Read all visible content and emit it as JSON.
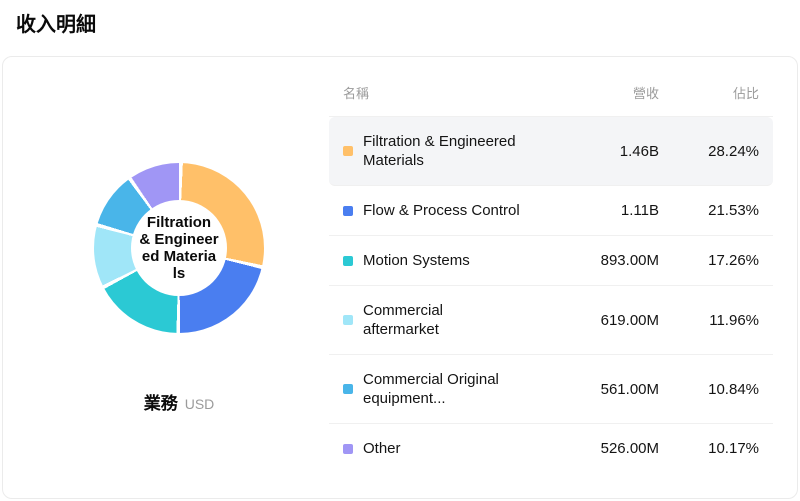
{
  "page": {
    "title": "收入明細"
  },
  "chart": {
    "center_label": "Filtration\n& Engineer\ned Materia\nls",
    "footer_label": "業務",
    "footer_unit": "USD"
  },
  "table": {
    "headers": {
      "name": "名稱",
      "revenue": "營收",
      "share": "佔比"
    },
    "rows": [
      {
        "name": "Filtration & Engineered\nMaterials",
        "revenue": "1.46B",
        "share": "28.24%",
        "color": "#FFC069",
        "highlighted": true
      },
      {
        "name": "Flow & Process Control",
        "revenue": "1.11B",
        "share": "21.53%",
        "color": "#4A7EF0",
        "highlighted": false
      },
      {
        "name": "Motion Systems",
        "revenue": "893.00M",
        "share": "17.26%",
        "color": "#2BC9D4",
        "highlighted": false
      },
      {
        "name": "Commercial\naftermarket",
        "revenue": "619.00M",
        "share": "11.96%",
        "color": "#A0E6F8",
        "highlighted": false
      },
      {
        "name": "Commercial Original\nequipment...",
        "revenue": "561.00M",
        "share": "10.84%",
        "color": "#49B5E9",
        "highlighted": false
      },
      {
        "name": "Other",
        "revenue": "526.00M",
        "share": "10.17%",
        "color": "#A096F5",
        "highlighted": false
      }
    ]
  },
  "chart_data": {
    "type": "pie",
    "donut": true,
    "title": "收入明細",
    "categories": [
      "Filtration & Engineered Materials",
      "Flow & Process Control",
      "Motion Systems",
      "Commercial aftermarket",
      "Commercial Original equipment...",
      "Other"
    ],
    "values": [
      28.24,
      21.53,
      17.26,
      11.96,
      10.84,
      10.17
    ],
    "value_unit": "%",
    "revenues": [
      "1.46B",
      "1.11B",
      "893.00M",
      "619.00M",
      "561.00M",
      "526.00M"
    ],
    "currency": "USD",
    "colors": [
      "#FFC069",
      "#4A7EF0",
      "#2BC9D4",
      "#A0E6F8",
      "#49B5E9",
      "#A096F5"
    ],
    "legend_position": "right",
    "center_label": "Filtration & Engineered Materials"
  }
}
